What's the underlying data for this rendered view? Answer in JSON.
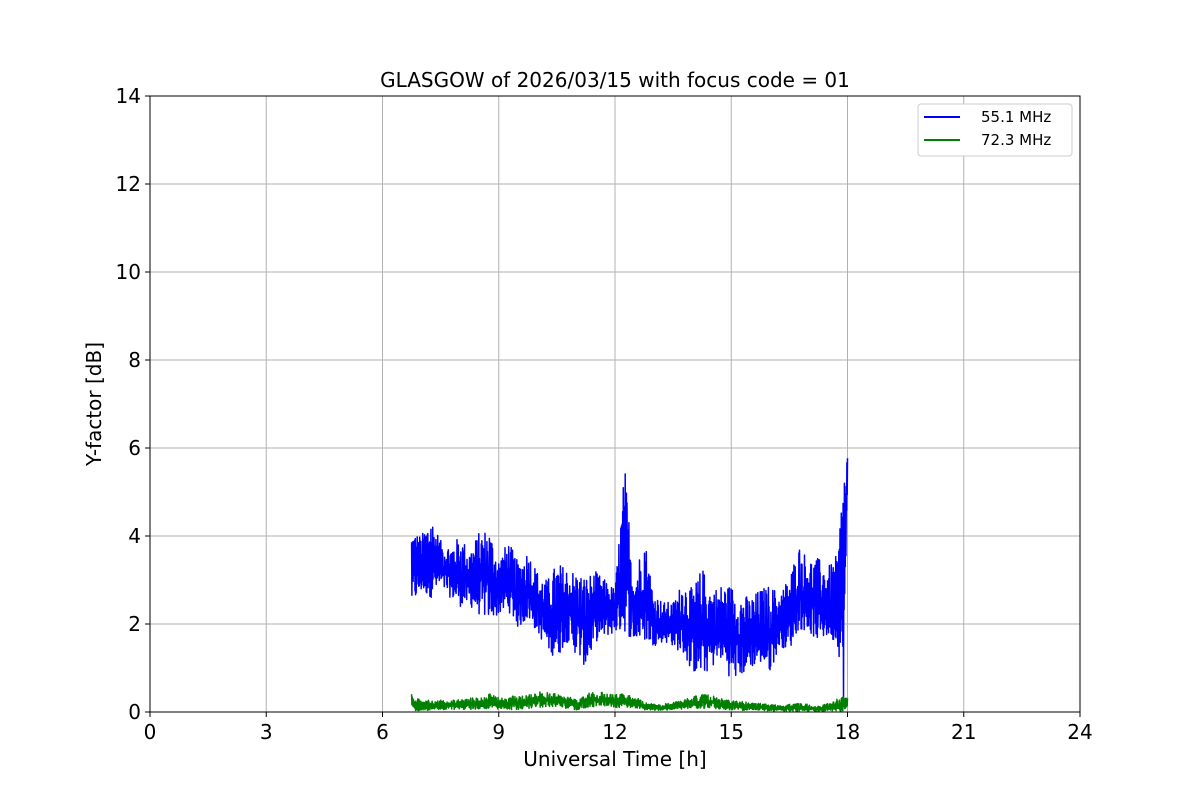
{
  "chart_data": {
    "type": "line",
    "title": "GLASGOW of 2026/03/15 with focus code = 01",
    "xlabel": "Universal Time [h]",
    "ylabel": "Y-factor [dB]",
    "xlim": [
      0,
      24
    ],
    "ylim": [
      0,
      14
    ],
    "xticks": [
      0,
      3,
      6,
      9,
      12,
      15,
      18,
      21,
      24
    ],
    "yticks": [
      0,
      2,
      4,
      6,
      8,
      10,
      12,
      14
    ],
    "xtick_labels": [
      "0",
      "3",
      "6",
      "9",
      "12",
      "15",
      "18",
      "21",
      "24"
    ],
    "ytick_labels": [
      "0",
      "2",
      "4",
      "6",
      "8",
      "10",
      "12",
      "14"
    ],
    "grid": true,
    "legend_position": "top-right",
    "legend": [
      "55.1 MHz",
      "72.3 MHz"
    ],
    "series": [
      {
        "name": "55.1 MHz",
        "color": "#0000ff",
        "x": [
          6.75,
          7.0,
          7.25,
          7.5,
          7.75,
          8.0,
          8.25,
          8.5,
          8.75,
          9.0,
          9.25,
          9.5,
          9.75,
          10.0,
          10.25,
          10.5,
          10.75,
          11.0,
          11.25,
          11.5,
          11.75,
          12.0,
          12.25,
          12.5,
          12.75,
          13.0,
          13.25,
          13.5,
          13.75,
          14.0,
          14.25,
          14.5,
          14.75,
          15.0,
          15.25,
          15.5,
          15.75,
          16.0,
          16.25,
          16.5,
          16.75,
          17.0,
          17.25,
          17.5,
          17.75,
          17.9,
          18.0
        ],
        "low": [
          2.4,
          2.7,
          2.6,
          2.8,
          2.6,
          2.4,
          2.4,
          2.2,
          2.1,
          2.2,
          2.3,
          1.9,
          2.1,
          1.8,
          1.4,
          1.2,
          1.6,
          1.3,
          1.0,
          1.6,
          1.7,
          1.8,
          1.8,
          1.6,
          1.6,
          1.5,
          1.6,
          1.5,
          1.3,
          0.9,
          0.8,
          1.0,
          1.2,
          0.7,
          0.8,
          1.0,
          1.1,
          0.9,
          1.5,
          1.4,
          1.9,
          1.8,
          1.6,
          1.7,
          1.5,
          0.2,
          4.8
        ],
        "high": [
          4.2,
          4.0,
          4.5,
          3.9,
          3.8,
          4.0,
          3.7,
          4.1,
          4.2,
          3.5,
          3.9,
          3.4,
          3.7,
          3.2,
          3.0,
          3.4,
          3.3,
          3.2,
          3.1,
          3.2,
          3.0,
          2.8,
          5.6,
          3.0,
          4.1,
          2.7,
          2.5,
          2.5,
          3.0,
          2.8,
          3.3,
          2.8,
          2.9,
          2.9,
          2.7,
          2.6,
          2.8,
          2.9,
          2.7,
          3.1,
          3.8,
          3.5,
          3.5,
          3.3,
          3.6,
          5.8,
          5.9
        ]
      },
      {
        "name": "72.3 MHz",
        "color": "#008000",
        "x": [
          6.75,
          7.0,
          7.25,
          7.5,
          7.75,
          8.0,
          8.25,
          8.5,
          8.75,
          9.0,
          9.25,
          9.5,
          9.75,
          10.0,
          10.25,
          10.5,
          10.75,
          11.0,
          11.25,
          11.5,
          11.75,
          12.0,
          12.25,
          12.5,
          12.75,
          13.0,
          13.25,
          13.5,
          13.75,
          14.0,
          14.25,
          14.5,
          14.75,
          15.0,
          15.25,
          15.5,
          15.75,
          16.0,
          16.25,
          16.5,
          16.75,
          17.0,
          17.25,
          17.5,
          17.75,
          17.9,
          18.0
        ],
        "low": [
          0.03,
          0.03,
          0.04,
          0.04,
          0.05,
          0.05,
          0.06,
          0.06,
          0.06,
          0.05,
          0.05,
          0.06,
          0.08,
          0.1,
          0.12,
          0.12,
          0.08,
          0.05,
          0.1,
          0.12,
          0.12,
          0.1,
          0.1,
          0.08,
          0.05,
          0.04,
          0.04,
          0.05,
          0.06,
          0.08,
          0.08,
          0.08,
          0.06,
          0.05,
          0.04,
          0.03,
          0.03,
          0.03,
          0.02,
          0.02,
          0.02,
          0.02,
          0.02,
          0.02,
          0.02,
          0.02,
          0.02
        ],
        "high": [
          0.42,
          0.25,
          0.28,
          0.27,
          0.28,
          0.3,
          0.32,
          0.34,
          0.42,
          0.33,
          0.35,
          0.38,
          0.42,
          0.46,
          0.45,
          0.44,
          0.35,
          0.3,
          0.42,
          0.45,
          0.45,
          0.4,
          0.42,
          0.38,
          0.22,
          0.18,
          0.18,
          0.22,
          0.3,
          0.35,
          0.4,
          0.38,
          0.3,
          0.26,
          0.24,
          0.22,
          0.2,
          0.18,
          0.16,
          0.18,
          0.2,
          0.18,
          0.15,
          0.2,
          0.3,
          0.35,
          0.4
        ]
      }
    ]
  }
}
